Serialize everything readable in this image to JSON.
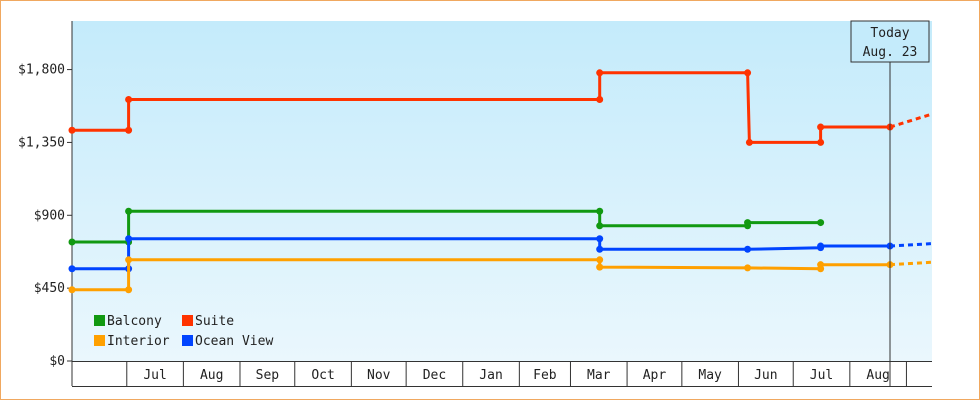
{
  "chart_data": {
    "type": "line",
    "title": "",
    "xlabel": "",
    "ylabel": "",
    "ylim": [
      0,
      2100
    ],
    "y_ticks": [
      {
        "value": 0,
        "label": "$0"
      },
      {
        "value": 450,
        "label": "$450"
      },
      {
        "value": 900,
        "label": "$900"
      },
      {
        "value": 1350,
        "label": "$1,350"
      },
      {
        "value": 1800,
        "label": "$1,800"
      }
    ],
    "x_start": "2012-06-01",
    "x_end": "2013-09-15",
    "months": [
      {
        "label": "Jul",
        "date": "2012-07-01"
      },
      {
        "label": "Aug",
        "date": "2012-08-01"
      },
      {
        "label": "Sep",
        "date": "2012-09-01"
      },
      {
        "label": "Oct",
        "date": "2012-10-01"
      },
      {
        "label": "Nov",
        "date": "2012-11-01"
      },
      {
        "label": "Dec",
        "date": "2012-12-01"
      },
      {
        "label": "Jan",
        "date": "2013-01-01"
      },
      {
        "label": "Feb",
        "date": "2013-02-01"
      },
      {
        "label": "Mar",
        "date": "2013-03-01"
      },
      {
        "label": "Apr",
        "date": "2013-04-01"
      },
      {
        "label": "May",
        "date": "2013-05-01"
      },
      {
        "label": "Jun",
        "date": "2013-06-01"
      },
      {
        "label": "Jul",
        "date": "2013-07-01"
      },
      {
        "label": "Aug",
        "date": "2013-08-01"
      }
    ],
    "today": {
      "date": "2013-08-23",
      "label_line1": "Today",
      "label_line2": "Aug. 23"
    },
    "legend_placement": "bottom-left",
    "grid": false,
    "series": [
      {
        "name": "Suite",
        "color": "#ff3300",
        "points": [
          {
            "date": "2012-06-01",
            "value": 1425
          },
          {
            "date": "2012-07-02",
            "value": 1425
          },
          {
            "date": "2012-07-02",
            "value": 1615
          },
          {
            "date": "2013-03-17",
            "value": 1615
          },
          {
            "date": "2013-03-17",
            "value": 1780
          },
          {
            "date": "2013-06-06",
            "value": 1780
          },
          {
            "date": "2013-06-07",
            "value": 1350
          },
          {
            "date": "2013-07-16",
            "value": 1350
          },
          {
            "date": "2013-07-16",
            "value": 1445
          },
          {
            "date": "2013-08-23",
            "value": 1445
          }
        ],
        "projection": {
          "date": "2013-09-15",
          "value": 1525
        }
      },
      {
        "name": "Balcony",
        "color": "#119911",
        "points": [
          {
            "date": "2012-06-01",
            "value": 735
          },
          {
            "date": "2012-07-02",
            "value": 735
          },
          {
            "date": "2012-07-02",
            "value": 925
          },
          {
            "date": "2013-03-17",
            "value": 925
          },
          {
            "date": "2013-03-17",
            "value": 835
          },
          {
            "date": "2013-06-06",
            "value": 835
          },
          {
            "date": "2013-06-06",
            "value": 855
          },
          {
            "date": "2013-07-16",
            "value": 855
          }
        ]
      },
      {
        "name": "Ocean View",
        "color": "#0044ff",
        "points": [
          {
            "date": "2012-06-01",
            "value": 570
          },
          {
            "date": "2012-07-02",
            "value": 570
          },
          {
            "date": "2012-07-02",
            "value": 755
          },
          {
            "date": "2013-03-17",
            "value": 755
          },
          {
            "date": "2013-03-17",
            "value": 690
          },
          {
            "date": "2013-06-06",
            "value": 690
          },
          {
            "date": "2013-07-16",
            "value": 700
          },
          {
            "date": "2013-07-16",
            "value": 710
          },
          {
            "date": "2013-08-23",
            "value": 710
          }
        ],
        "projection": {
          "date": "2013-09-15",
          "value": 725
        }
      },
      {
        "name": "Interior",
        "color": "#ffa000",
        "points": [
          {
            "date": "2012-06-01",
            "value": 440
          },
          {
            "date": "2012-07-02",
            "value": 440
          },
          {
            "date": "2012-07-02",
            "value": 625
          },
          {
            "date": "2013-03-17",
            "value": 625
          },
          {
            "date": "2013-03-17",
            "value": 580
          },
          {
            "date": "2013-06-06",
            "value": 575
          },
          {
            "date": "2013-07-16",
            "value": 570
          },
          {
            "date": "2013-07-16",
            "value": 595
          },
          {
            "date": "2013-08-23",
            "value": 595
          }
        ],
        "projection": {
          "date": "2013-09-15",
          "value": 610
        }
      }
    ],
    "legend": [
      {
        "name": "Balcony",
        "color": "#119911"
      },
      {
        "name": "Suite",
        "color": "#ff3300"
      },
      {
        "name": "Interior",
        "color": "#ffa000"
      },
      {
        "name": "Ocean View",
        "color": "#0044ff"
      }
    ]
  }
}
